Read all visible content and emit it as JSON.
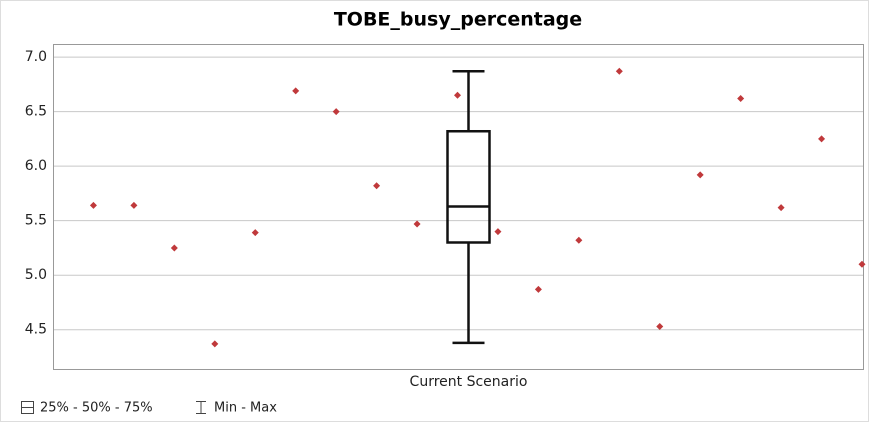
{
  "chart_data": {
    "type": "box",
    "title": "TOBE_busy_percentage",
    "categories": [
      "Current Scenario"
    ],
    "box": {
      "min": 4.38,
      "q1": 5.3,
      "median": 5.63,
      "q3": 6.32,
      "max": 6.87
    },
    "points": {
      "color": "#c0393b",
      "values": [
        5.64,
        5.64,
        5.25,
        4.37,
        5.39,
        6.69,
        6.5,
        5.82,
        5.47,
        6.65,
        5.4,
        4.87,
        5.32,
        6.87,
        4.53,
        5.92,
        6.62,
        5.62,
        6.25,
        5.1
      ]
    },
    "ylim": [
      4.14,
      7.12
    ],
    "yticks": [
      {
        "value": 4.5,
        "label": "4.5"
      },
      {
        "value": 5,
        "label": "5.0"
      },
      {
        "value": 5.5,
        "label": "5.5"
      },
      {
        "value": 6,
        "label": "6.0"
      },
      {
        "value": 6.5,
        "label": "6.5"
      },
      {
        "value": 7,
        "label": "7.0"
      }
    ],
    "grid": true,
    "legend": [
      "25% - 50% - 75%",
      "Min - Max"
    ]
  }
}
